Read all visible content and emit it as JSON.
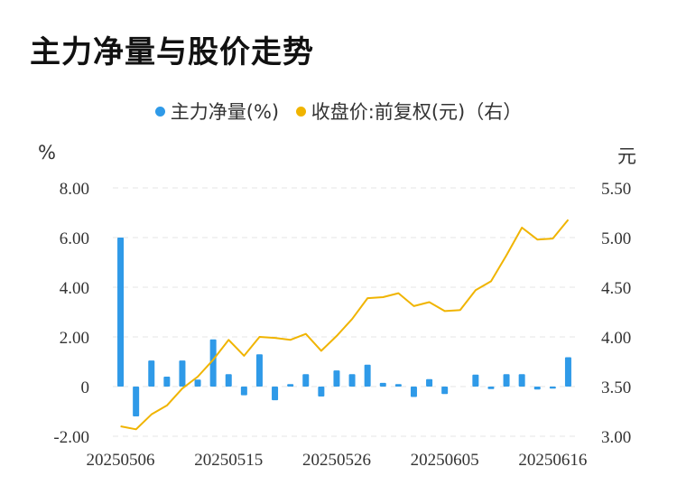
{
  "title": "主力净量与股价走势",
  "legend": [
    {
      "label": "主力净量(%)",
      "color": "#2f9ae8"
    },
    {
      "label": "收盘价:前复权(元)（右）",
      "color": "#f0b400"
    }
  ],
  "units": {
    "left": "%",
    "right": "元"
  },
  "chart_data": {
    "type": "bar+line",
    "title": "主力净量与股价走势",
    "y_left": {
      "unit": "%",
      "ticks": [
        "-2.00",
        "0",
        "2.00",
        "4.00",
        "6.00",
        "8.00"
      ],
      "range": [
        -2,
        8
      ]
    },
    "y_right": {
      "unit": "元",
      "ticks": [
        "3.00",
        "3.50",
        "4.00",
        "4.50",
        "5.00",
        "5.50"
      ],
      "range": [
        3.0,
        5.5
      ]
    },
    "x_tick_labels": [
      "20250506",
      "20250515",
      "20250526",
      "20250605",
      "20250616"
    ],
    "x_tick_index": [
      0,
      7,
      14,
      21,
      28
    ],
    "grid": true,
    "legend_position": "top",
    "series": [
      {
        "name": "主力净量(%)",
        "type": "bar",
        "color": "#2f9ae8",
        "values": [
          6.0,
          -1.2,
          1.05,
          0.4,
          1.05,
          0.28,
          1.9,
          0.5,
          -0.35,
          1.3,
          -0.55,
          0.1,
          0.5,
          -0.4,
          0.65,
          0.5,
          0.88,
          0.15,
          0.1,
          -0.42,
          0.3,
          -0.3,
          0.0,
          0.48,
          -0.1,
          0.5,
          0.5,
          -0.12,
          -0.08,
          1.18
        ]
      },
      {
        "name": "收盘价:前复权(元)（右）",
        "type": "line",
        "color": "#f0b400",
        "values": [
          3.1,
          3.07,
          3.22,
          3.31,
          3.48,
          3.6,
          3.77,
          3.97,
          3.81,
          4.0,
          3.99,
          3.97,
          4.03,
          3.86,
          4.01,
          4.18,
          4.39,
          4.4,
          4.44,
          4.31,
          4.35,
          4.26,
          4.27,
          4.47,
          4.56,
          4.82,
          5.1,
          4.98,
          4.99,
          5.18
        ]
      }
    ]
  }
}
